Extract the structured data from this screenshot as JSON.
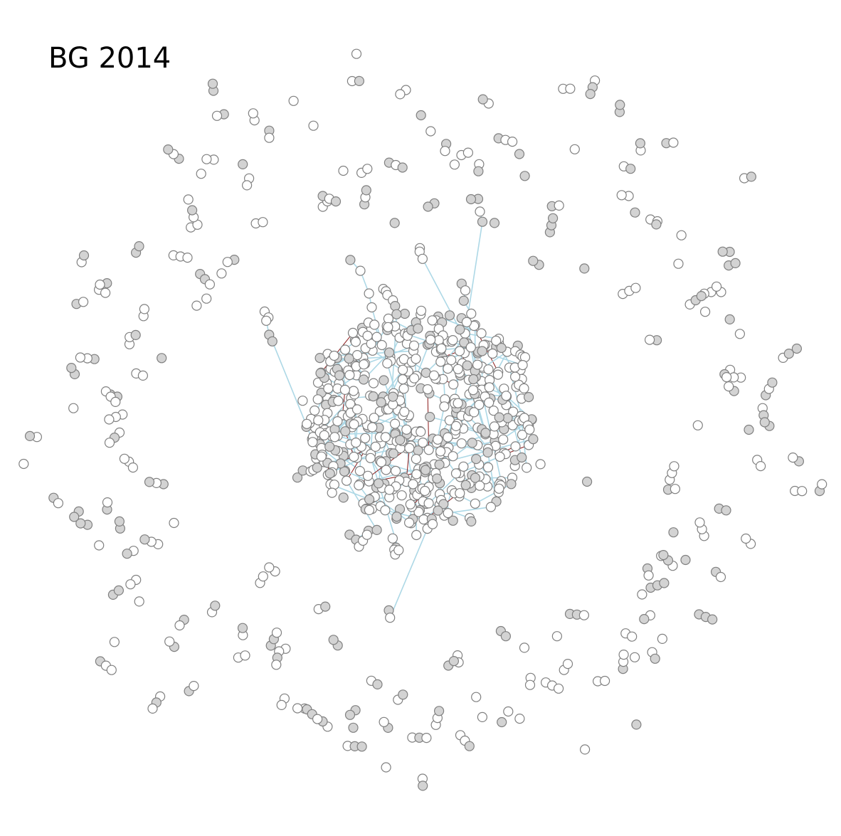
{
  "figure": {
    "title": "BG 2014"
  },
  "network": {
    "node_fill_colors": [
      "#ffffff",
      "#d3d3d3"
    ],
    "node_stroke_color": "#808080",
    "edge_colors": {
      "positive": "#add8e6",
      "negative": "#8b1a1a"
    }
  }
}
